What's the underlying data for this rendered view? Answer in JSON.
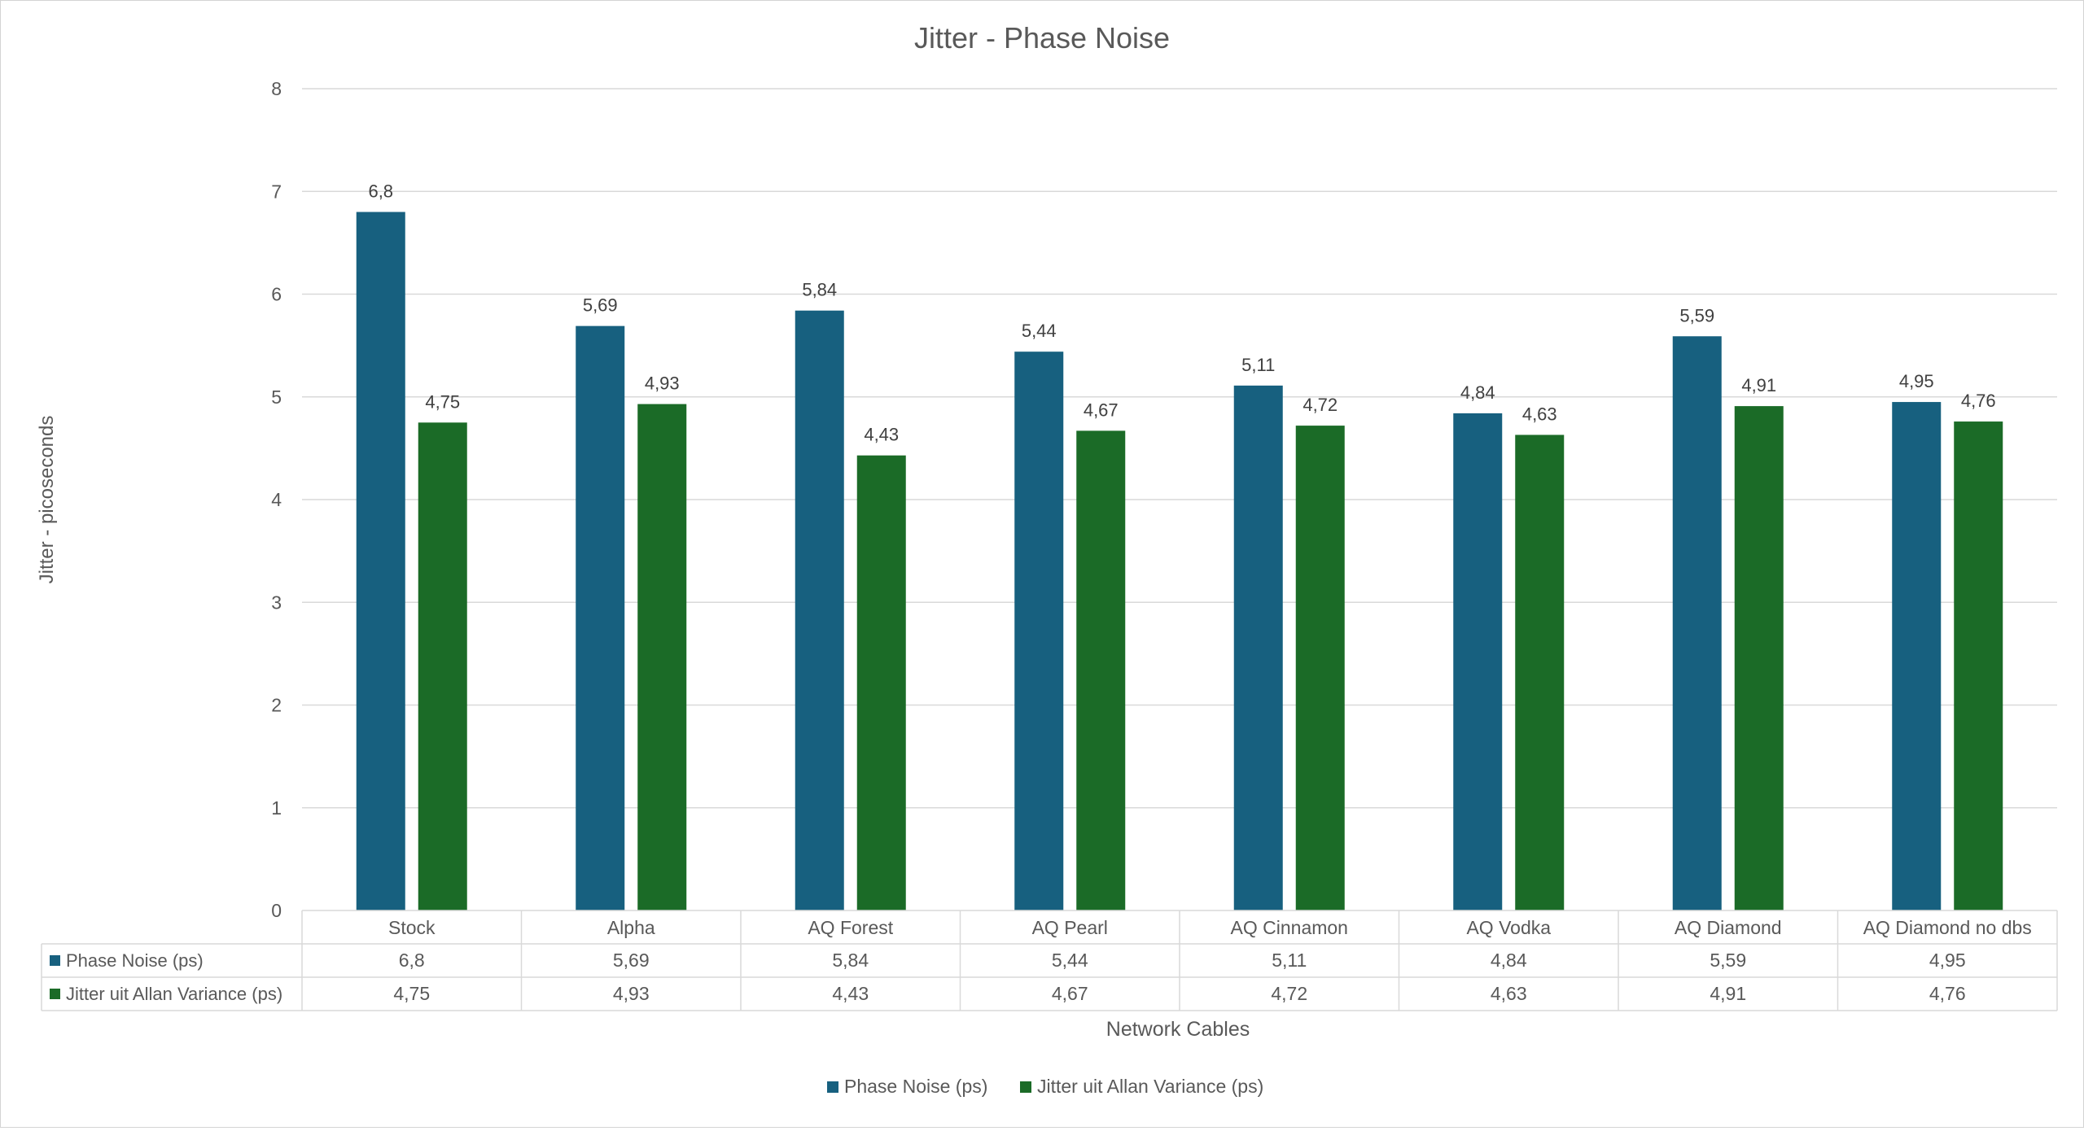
{
  "chart_data": {
    "type": "bar",
    "title": "Jitter - Phase Noise",
    "xlabel": "Network Cables",
    "ylabel": "Jitter - picoseconds",
    "ylim": [
      0,
      8
    ],
    "yticks": [
      "0",
      "1",
      "2",
      "3",
      "4",
      "5",
      "6",
      "7",
      "8"
    ],
    "grid": true,
    "legend_position": "bottom",
    "data_table": true,
    "categories": [
      "Stock",
      "Alpha",
      "AQ Forest",
      "AQ Pearl",
      "AQ Cinnamon",
      "AQ Vodka",
      "AQ Diamond",
      "AQ Diamond no dbs"
    ],
    "series": [
      {
        "name": "Phase Noise (ps)",
        "color": "#17607f",
        "values": [
          6.8,
          5.69,
          5.84,
          5.44,
          5.11,
          4.84,
          5.59,
          4.95
        ],
        "labels": [
          "6,8",
          "5,69",
          "5,84",
          "5,44",
          "5,11",
          "4,84",
          "5,59",
          "4,95"
        ]
      },
      {
        "name": "Jitter uit Allan Variance (ps)",
        "color": "#1b6b27",
        "values": [
          4.75,
          4.93,
          4.43,
          4.67,
          4.72,
          4.63,
          4.91,
          4.76
        ],
        "labels": [
          "4,75",
          "4,93",
          "4,43",
          "4,67",
          "4,72",
          "4,63",
          "4,91",
          "4,76"
        ]
      }
    ]
  }
}
